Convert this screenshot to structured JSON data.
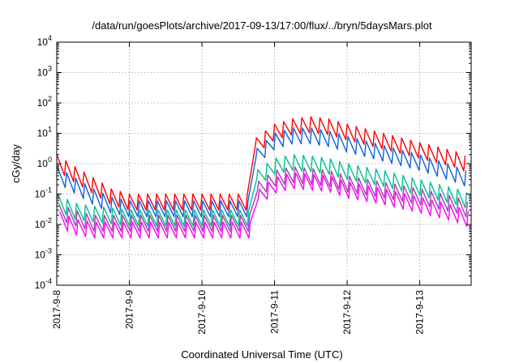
{
  "chart_data": {
    "type": "line",
    "title": "/data/run/goesPlots/archive/2017-09-13/17:00/flux/../bryn/5daysMars.plot",
    "xlabel": "Coordinated Universal Time (UTC)",
    "ylabel": "cGy/day",
    "y_scale": "log",
    "ylim": [
      0.0001,
      10000
    ],
    "xlim": [
      "2017-09-08T00:00",
      "2017-09-13T17:00"
    ],
    "grid": true,
    "legend": "none",
    "x_ticks": [
      {
        "date": "2017-09-08",
        "label": "2017-9-8"
      },
      {
        "date": "2017-09-09",
        "label": "2017-9-9"
      },
      {
        "date": "2017-09-10",
        "label": "2017-9-10"
      },
      {
        "date": "2017-09-11",
        "label": "2017-9-11"
      },
      {
        "date": "2017-09-12",
        "label": "2017-9-12"
      },
      {
        "date": "2017-09-13",
        "label": "2017-9-13"
      }
    ],
    "y_ticks": [
      {
        "value": 0.0001,
        "base": "10",
        "exp": "-4"
      },
      {
        "value": 0.001,
        "base": "10",
        "exp": "-3"
      },
      {
        "value": 0.01,
        "base": "10",
        "exp": "-2"
      },
      {
        "value": 0.1,
        "base": "10",
        "exp": "-1"
      },
      {
        "value": 1,
        "base": "10",
        "exp": "0"
      },
      {
        "value": 10,
        "base": "10",
        "exp": "1"
      },
      {
        "value": 100,
        "base": "10",
        "exp": "2"
      },
      {
        "value": 1000,
        "base": "10",
        "exp": "3"
      },
      {
        "value": 10000,
        "base": "10",
        "exp": "4"
      }
    ],
    "cycle_hours": 3,
    "trough_ratio": 0.3,
    "series": [
      {
        "color": "#ff0000",
        "x": [
          "2017-09-08T00:00",
          "2017-09-08T06:00",
          "2017-09-08T12:00",
          "2017-09-08T18:00",
          "2017-09-09T00:00",
          "2017-09-09T12:00",
          "2017-09-10T00:00",
          "2017-09-10T12:00",
          "2017-09-10T16:00",
          "2017-09-10T17:00",
          "2017-09-11T00:00",
          "2017-09-11T06:00",
          "2017-09-11T12:00",
          "2017-09-11T18:00",
          "2017-09-12T00:00",
          "2017-09-12T12:00",
          "2017-09-13T00:00",
          "2017-09-13T12:00",
          "2017-09-13T17:00"
        ],
        "y": [
          2.0,
          0.8,
          0.35,
          0.15,
          0.1,
          0.1,
          0.1,
          0.1,
          0.1,
          6.0,
          20,
          30,
          35,
          30,
          20,
          10,
          5,
          2.5,
          1.5
        ]
      },
      {
        "color": "#1060e0",
        "x": [
          "2017-09-08T00:00",
          "2017-09-08T06:00",
          "2017-09-08T12:00",
          "2017-09-08T18:00",
          "2017-09-09T00:00",
          "2017-09-09T12:00",
          "2017-09-10T00:00",
          "2017-09-10T12:00",
          "2017-09-10T16:00",
          "2017-09-10T17:00",
          "2017-09-11T00:00",
          "2017-09-11T06:00",
          "2017-09-11T12:00",
          "2017-09-11T18:00",
          "2017-09-12T00:00",
          "2017-09-12T12:00",
          "2017-09-13T00:00",
          "2017-09-13T12:00",
          "2017-09-13T17:00"
        ],
        "y": [
          0.8,
          0.35,
          0.15,
          0.08,
          0.06,
          0.06,
          0.06,
          0.06,
          0.06,
          2.5,
          10,
          15,
          15,
          12,
          8,
          4,
          2,
          0.8,
          0.5
        ]
      },
      {
        "color": "#00c090",
        "x": [
          "2017-09-08T00:00",
          "2017-09-08T06:00",
          "2017-09-08T12:00",
          "2017-09-08T18:00",
          "2017-09-09T00:00",
          "2017-09-09T12:00",
          "2017-09-10T00:00",
          "2017-09-10T12:00",
          "2017-09-10T16:00",
          "2017-09-10T17:00",
          "2017-09-11T00:00",
          "2017-09-11T06:00",
          "2017-09-11T12:00",
          "2017-09-11T18:00",
          "2017-09-12T00:00",
          "2017-09-12T12:00",
          "2017-09-13T00:00",
          "2017-09-13T12:00",
          "2017-09-13T17:00"
        ],
        "y": [
          0.1,
          0.05,
          0.04,
          0.035,
          0.03,
          0.03,
          0.03,
          0.03,
          0.03,
          0.5,
          1.5,
          2.0,
          1.8,
          1.5,
          1.0,
          0.6,
          0.3,
          0.15,
          0.1
        ]
      },
      {
        "color": "#a040b0",
        "x": [
          "2017-09-08T00:00",
          "2017-09-08T06:00",
          "2017-09-08T12:00",
          "2017-09-08T18:00",
          "2017-09-09T00:00",
          "2017-09-09T12:00",
          "2017-09-10T00:00",
          "2017-09-10T12:00",
          "2017-09-10T16:00",
          "2017-09-10T17:00",
          "2017-09-11T00:00",
          "2017-09-11T06:00",
          "2017-09-11T12:00",
          "2017-09-11T18:00",
          "2017-09-12T00:00",
          "2017-09-12T12:00",
          "2017-09-13T00:00",
          "2017-09-13T12:00",
          "2017-09-13T17:00"
        ],
        "y": [
          0.05,
          0.03,
          0.02,
          0.02,
          0.02,
          0.02,
          0.02,
          0.02,
          0.02,
          0.2,
          0.6,
          0.8,
          0.7,
          0.6,
          0.4,
          0.25,
          0.15,
          0.08,
          0.05
        ]
      },
      {
        "color": "#ff00ff",
        "x": [
          "2017-09-08T00:00",
          "2017-09-08T06:00",
          "2017-09-08T12:00",
          "2017-09-08T18:00",
          "2017-09-09T00:00",
          "2017-09-09T12:00",
          "2017-09-10T00:00",
          "2017-09-10T12:00",
          "2017-09-10T16:00",
          "2017-09-10T17:00",
          "2017-09-11T00:00",
          "2017-09-11T06:00",
          "2017-09-11T12:00",
          "2017-09-11T18:00",
          "2017-09-12T00:00",
          "2017-09-12T12:00",
          "2017-09-13T00:00",
          "2017-09-13T12:00",
          "2017-09-13T17:00"
        ],
        "y": [
          0.03,
          0.015,
          0.012,
          0.012,
          0.012,
          0.012,
          0.012,
          0.012,
          0.012,
          0.1,
          0.35,
          0.5,
          0.45,
          0.4,
          0.25,
          0.15,
          0.08,
          0.04,
          0.025
        ]
      }
    ]
  }
}
